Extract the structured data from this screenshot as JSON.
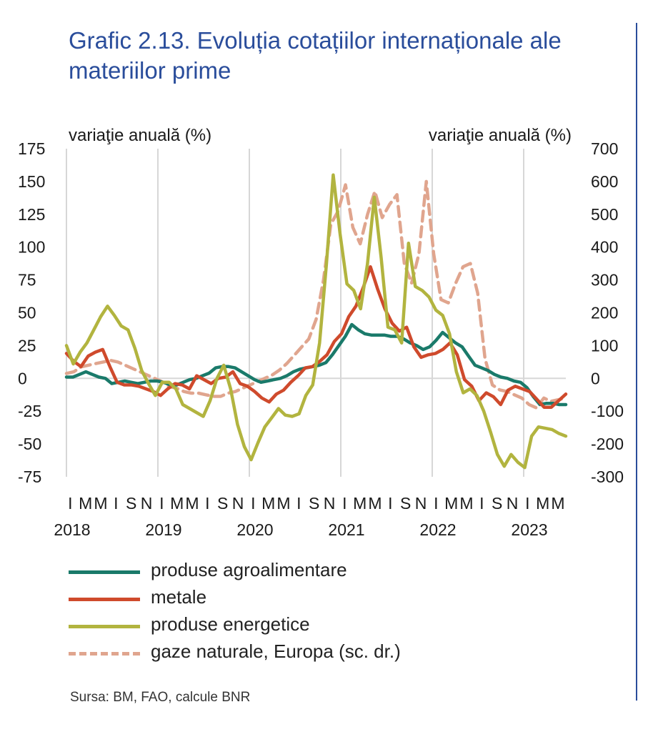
{
  "title": "Grafic 2.13. Evoluția  cotațiilor internaționale ale materiilor prime",
  "source": "Sursa: BM, FAO, calcule BNR",
  "colors": {
    "title": "#2a4d9b",
    "agro": "#1a7a6a",
    "metale": "#cf4a2c",
    "energie": "#b2b43f",
    "gaze": "#e0a58e",
    "grid": "#d7d7d7"
  },
  "chart_data": {
    "type": "line",
    "y_left": {
      "label": "variaţie anuală (%)",
      "ticks": [
        "175",
        "150",
        "125",
        "100",
        "75",
        "50",
        "25",
        "0",
        "-25",
        "-50",
        "-75"
      ],
      "lim": [
        -75,
        175
      ]
    },
    "y_right": {
      "label": "variaţie anuală (%)",
      "ticks": [
        "700",
        "600",
        "500",
        "400",
        "300",
        "200",
        "100",
        "0",
        "-100",
        "-200",
        "-300"
      ],
      "lim": [
        -300,
        700
      ]
    },
    "x_month_labels": [
      "I",
      "M",
      "M",
      "I",
      "S",
      "N",
      "I",
      "M",
      "M",
      "I",
      "S",
      "N",
      "I",
      "M",
      "M",
      "I",
      "S",
      "N",
      "I",
      "M",
      "M",
      "I",
      "S",
      "N",
      "I",
      "M",
      "M",
      "I",
      "S",
      "N",
      "I",
      "M",
      "M"
    ],
    "x_year_labels": [
      "2018",
      "2019",
      "2020",
      "2021",
      "2022",
      "2023"
    ],
    "x_range": [
      "2018-01",
      "2023-06"
    ],
    "grid": "vertical at year boundaries",
    "legend_position": "bottom",
    "series": [
      {
        "name": "produse agroalimentare",
        "axis": "left",
        "color": "#1a7a6a",
        "style": "solid",
        "values": [
          1,
          1,
          3,
          5,
          3,
          1,
          0,
          -4,
          -3,
          -2,
          -3,
          -4,
          -3,
          -2,
          -2,
          -3,
          -5,
          -5,
          -3,
          -1,
          0,
          2,
          4,
          8,
          9,
          9,
          8,
          5,
          2,
          -1,
          -3,
          -2,
          -1,
          0,
          2,
          5,
          7,
          8,
          9,
          10,
          12,
          18,
          25,
          32,
          41,
          37,
          34,
          33,
          33,
          33,
          32,
          32,
          30,
          27,
          25,
          22,
          24,
          29,
          35,
          31,
          27,
          24,
          17,
          10,
          8,
          6,
          3,
          1,
          0,
          -2,
          -3,
          -7,
          -14,
          -20,
          -19,
          -19,
          -20,
          -20
        ]
      },
      {
        "name": "metale",
        "axis": "left",
        "color": "#cf4a2c",
        "style": "solid",
        "values": [
          19,
          13,
          9,
          17,
          20,
          22,
          9,
          -3,
          -5,
          -5,
          -6,
          -8,
          -10,
          -13,
          -8,
          -4,
          -5,
          -8,
          2,
          -1,
          -4,
          0,
          1,
          5,
          -4,
          -6,
          -10,
          -15,
          -18,
          -12,
          -9,
          -3,
          2,
          8,
          9,
          13,
          18,
          28,
          34,
          47,
          55,
          69,
          85,
          68,
          53,
          42,
          36,
          39,
          24,
          16,
          18,
          19,
          22,
          27,
          18,
          -1,
          -6,
          -17,
          -11,
          -14,
          -20,
          -9,
          -6,
          -8,
          -10,
          -16,
          -22,
          -22,
          -17,
          -12
        ]
      },
      {
        "name": "produse energetice",
        "axis": "left",
        "color": "#b2b43f",
        "style": "solid",
        "values": [
          25,
          11,
          20,
          27,
          37,
          47,
          55,
          48,
          40,
          37,
          23,
          6,
          -4,
          -13,
          -3,
          -3,
          -8,
          -20,
          -23,
          -26,
          -29,
          -17,
          0,
          10,
          -8,
          -35,
          -52,
          -62,
          -49,
          -37,
          -30,
          -23,
          -28,
          -29,
          -27,
          -13,
          -5,
          27,
          87,
          155,
          110,
          72,
          67,
          53,
          87,
          138,
          92,
          39,
          37,
          27,
          103,
          70,
          67,
          62,
          52,
          48,
          34,
          5,
          -11,
          -8,
          -13,
          -25,
          -41,
          -58,
          -67,
          -58,
          -64,
          -68,
          -44,
          -37,
          -38,
          -39,
          -42,
          -44
        ]
      },
      {
        "name": "gaze naturale, Europa (sc. dr.)",
        "axis": "right",
        "color": "#e0a58e",
        "style": "dashed",
        "values": [
          15,
          20,
          35,
          40,
          45,
          50,
          55,
          50,
          40,
          30,
          20,
          10,
          0,
          -10,
          -25,
          -30,
          -40,
          -45,
          -45,
          -50,
          -55,
          -55,
          -45,
          -40,
          -30,
          -20,
          -10,
          0,
          10,
          25,
          45,
          70,
          95,
          120,
          180,
          300,
          470,
          510,
          590,
          460,
          410,
          500,
          570,
          490,
          530,
          560,
          350,
          290,
          380,
          600,
          380,
          240,
          230,
          290,
          340,
          350,
          260,
          60,
          -20,
          -35,
          -40,
          -50,
          -60,
          -80,
          -90,
          -60,
          -70,
          -65,
          -60
        ]
      }
    ]
  }
}
